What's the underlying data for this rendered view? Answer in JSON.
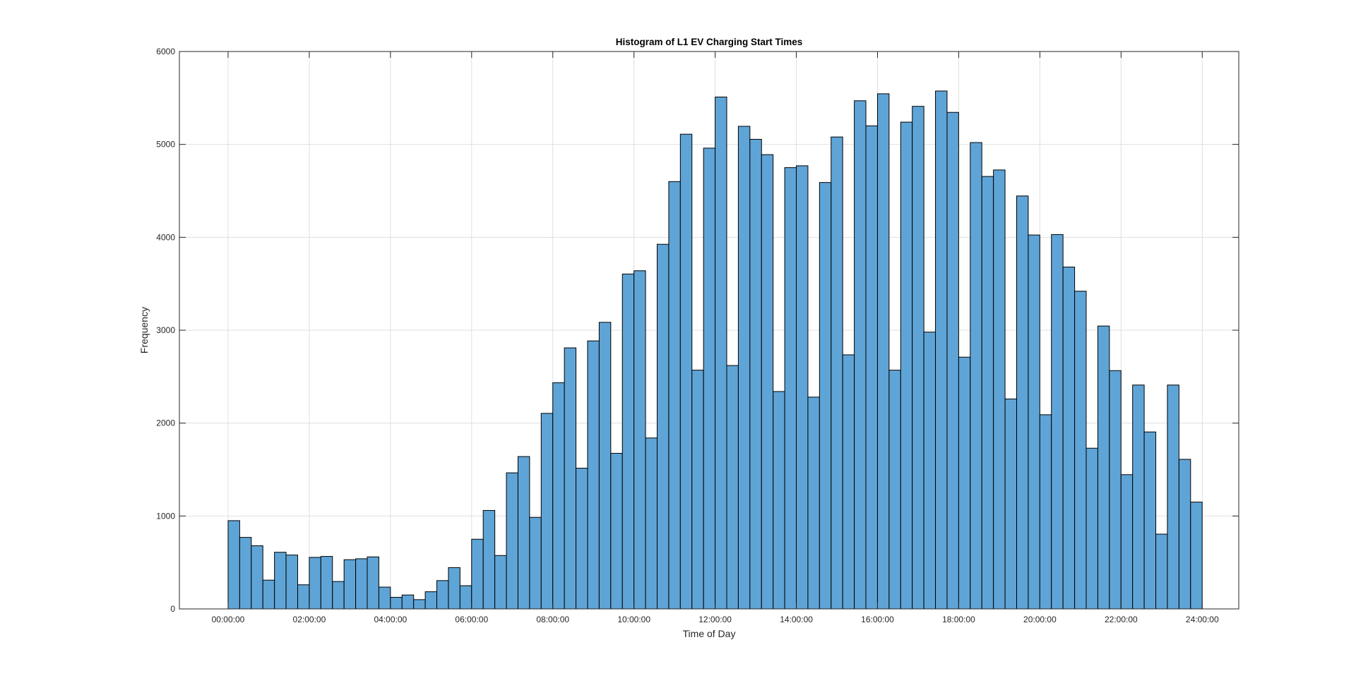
{
  "chart_data": {
    "type": "bar",
    "title": "Histogram of L1 EV Charging Start Times",
    "xlabel": "Time of Day",
    "ylabel": "Frequency",
    "ylim": [
      0,
      6000
    ],
    "xlim_hours": [
      -1.2,
      24.9
    ],
    "bin_width_hours": 0.2857,
    "bin_start_hours": 0,
    "y_ticks": [
      0,
      1000,
      2000,
      3000,
      4000,
      5000,
      6000
    ],
    "x_ticks": [
      {
        "hour": 0,
        "label": "00:00:00"
      },
      {
        "hour": 2,
        "label": "02:00:00"
      },
      {
        "hour": 4,
        "label": "04:00:00"
      },
      {
        "hour": 6,
        "label": "06:00:00"
      },
      {
        "hour": 8,
        "label": "08:00:00"
      },
      {
        "hour": 10,
        "label": "10:00:00"
      },
      {
        "hour": 12,
        "label": "12:00:00"
      },
      {
        "hour": 14,
        "label": "14:00:00"
      },
      {
        "hour": 16,
        "label": "16:00:00"
      },
      {
        "hour": 18,
        "label": "18:00:00"
      },
      {
        "hour": 20,
        "label": "20:00:00"
      },
      {
        "hour": 22,
        "label": "22:00:00"
      },
      {
        "hour": 24,
        "label": "24:00:00"
      }
    ],
    "grid": true,
    "bar_color": "#5fa4d6",
    "bar_edge_color": "#000000",
    "values": [
      950,
      770,
      680,
      310,
      610,
      580,
      260,
      555,
      565,
      295,
      530,
      540,
      560,
      235,
      125,
      150,
      100,
      185,
      305,
      445,
      250,
      750,
      1060,
      575,
      1465,
      1640,
      985,
      2105,
      2435,
      2810,
      1515,
      2885,
      3085,
      1675,
      3605,
      3640,
      1840,
      3925,
      4600,
      5110,
      2570,
      4960,
      5510,
      2620,
      5195,
      5055,
      4890,
      2340,
      4750,
      4770,
      2280,
      4590,
      5080,
      2735,
      5470,
      5200,
      5545,
      2570,
      5240,
      5410,
      2980,
      5575,
      5345,
      2710,
      5020,
      4655,
      4725,
      2260,
      4445,
      4025,
      2090,
      4030,
      3680,
      3420,
      1730,
      3045,
      2565,
      1445,
      2410,
      1905,
      805,
      2410,
      1610,
      1150
    ]
  }
}
